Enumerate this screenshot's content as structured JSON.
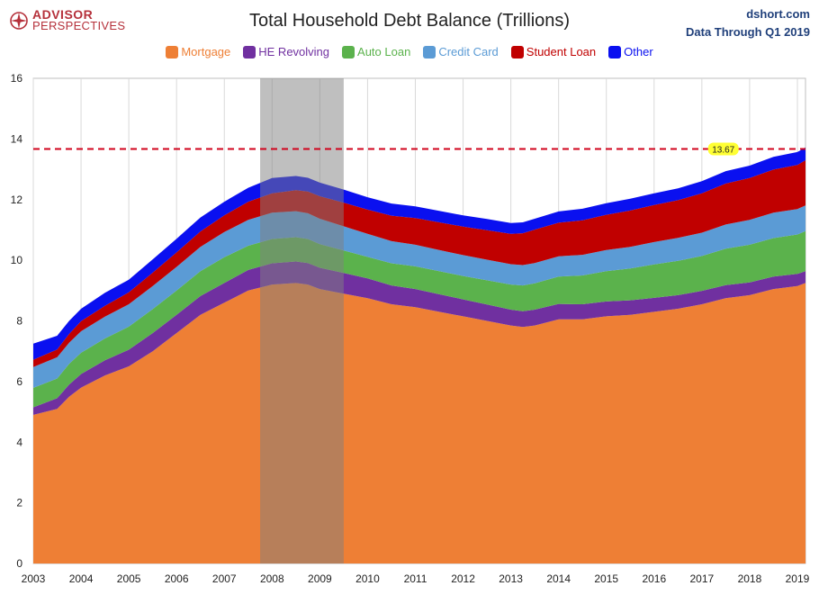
{
  "header": {
    "logo_line1": "ADVISOR",
    "logo_line2": "PERSPECTIVES",
    "source_line1": "dshort.com",
    "source_line2": "Data Through Q1 2019"
  },
  "chart_data": {
    "type": "area",
    "stacked": true,
    "title": "Total Household Debt Balance (Trillions)",
    "xlabel": "",
    "ylabel": "",
    "xlim": [
      2003,
      2019.17
    ],
    "ylim": [
      0,
      16
    ],
    "yticks": [
      0,
      2,
      4,
      6,
      8,
      10,
      12,
      14,
      16
    ],
    "xticks": [
      "2003",
      "2004",
      "2005",
      "2006",
      "2007",
      "2008",
      "2009",
      "2010",
      "2011",
      "2012",
      "2013",
      "2014",
      "2015",
      "2016",
      "2017",
      "2018",
      "2019"
    ],
    "grid": "vertical",
    "legend_position": "top-center",
    "x": [
      2003.0,
      2003.5,
      2003.75,
      2004.0,
      2004.5,
      2005.0,
      2005.5,
      2006.0,
      2006.5,
      2007.0,
      2007.5,
      2008.0,
      2008.5,
      2008.75,
      2009.0,
      2009.5,
      2010.0,
      2010.5,
      2011.0,
      2011.5,
      2012.0,
      2012.5,
      2013.0,
      2013.25,
      2013.5,
      2014.0,
      2014.5,
      2015.0,
      2015.5,
      2016.0,
      2016.5,
      2017.0,
      2017.5,
      2018.0,
      2018.5,
      2019.0,
      2019.17
    ],
    "series": [
      {
        "name": "Mortgage",
        "color": "#ee7f35",
        "values": [
          4.9,
          5.1,
          5.5,
          5.8,
          6.2,
          6.5,
          7.0,
          7.6,
          8.2,
          8.6,
          9.0,
          9.2,
          9.25,
          9.2,
          9.05,
          8.9,
          8.75,
          8.55,
          8.45,
          8.3,
          8.15,
          8.0,
          7.85,
          7.8,
          7.85,
          8.05,
          8.05,
          8.15,
          8.2,
          8.3,
          8.4,
          8.55,
          8.75,
          8.85,
          9.05,
          9.15,
          9.25
        ]
      },
      {
        "name": "HE Revolving",
        "color": "#7030a0",
        "values": [
          0.25,
          0.35,
          0.4,
          0.45,
          0.5,
          0.55,
          0.6,
          0.6,
          0.62,
          0.65,
          0.68,
          0.7,
          0.71,
          0.71,
          0.7,
          0.68,
          0.65,
          0.62,
          0.6,
          0.58,
          0.56,
          0.54,
          0.52,
          0.52,
          0.52,
          0.51,
          0.5,
          0.49,
          0.48,
          0.46,
          0.45,
          0.44,
          0.43,
          0.42,
          0.41,
          0.4,
          0.39
        ]
      },
      {
        "name": "Auto Loan",
        "color": "#5bb24c",
        "values": [
          0.64,
          0.65,
          0.68,
          0.7,
          0.72,
          0.76,
          0.79,
          0.8,
          0.82,
          0.85,
          0.8,
          0.8,
          0.8,
          0.79,
          0.78,
          0.74,
          0.71,
          0.73,
          0.75,
          0.76,
          0.77,
          0.8,
          0.83,
          0.85,
          0.87,
          0.9,
          0.95,
          1.0,
          1.05,
          1.1,
          1.13,
          1.15,
          1.2,
          1.24,
          1.27,
          1.3,
          1.32
        ]
      },
      {
        "name": "Credit Card",
        "color": "#5b9bd5",
        "values": [
          0.69,
          0.7,
          0.7,
          0.71,
          0.72,
          0.74,
          0.76,
          0.78,
          0.8,
          0.83,
          0.85,
          0.87,
          0.86,
          0.85,
          0.84,
          0.8,
          0.76,
          0.73,
          0.71,
          0.7,
          0.69,
          0.68,
          0.67,
          0.67,
          0.67,
          0.67,
          0.68,
          0.7,
          0.71,
          0.74,
          0.76,
          0.77,
          0.8,
          0.82,
          0.84,
          0.84,
          0.85
        ]
      },
      {
        "name": "Student Loan",
        "color": "#c00000",
        "values": [
          0.24,
          0.26,
          0.29,
          0.33,
          0.36,
          0.39,
          0.44,
          0.48,
          0.51,
          0.55,
          0.6,
          0.64,
          0.69,
          0.72,
          0.74,
          0.78,
          0.8,
          0.84,
          0.88,
          0.91,
          0.94,
          0.97,
          1.0,
          1.05,
          1.1,
          1.11,
          1.14,
          1.16,
          1.2,
          1.22,
          1.24,
          1.3,
          1.35,
          1.38,
          1.42,
          1.45,
          1.49
        ]
      },
      {
        "name": "Other",
        "color": "#0a10f0",
        "values": [
          0.53,
          0.45,
          0.43,
          0.41,
          0.43,
          0.42,
          0.44,
          0.45,
          0.46,
          0.45,
          0.46,
          0.5,
          0.47,
          0.45,
          0.45,
          0.43,
          0.41,
          0.4,
          0.39,
          0.38,
          0.37,
          0.37,
          0.36,
          0.36,
          0.36,
          0.37,
          0.38,
          0.38,
          0.39,
          0.39,
          0.39,
          0.4,
          0.41,
          0.41,
          0.42,
          0.43,
          0.42
        ]
      }
    ],
    "recession": [
      2007.75,
      2009.5
    ],
    "reference_line": {
      "value": 13.67,
      "label": "13.67",
      "color": "#d0021b"
    }
  }
}
